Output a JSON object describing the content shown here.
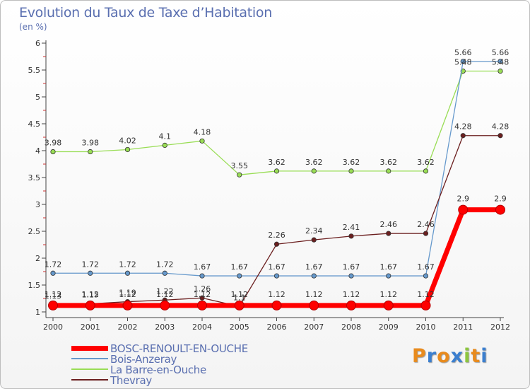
{
  "title": "Evolution du Taux de Taxe d’Habitation",
  "subtitle": "(en %)",
  "logo": {
    "text": [
      "P",
      "r",
      "o",
      "x",
      "i",
      "t",
      "i"
    ],
    "colors": [
      "#e88b1e",
      "#3b7fcf",
      "#e88b1e",
      "#3b7fcf",
      "#8dc63f",
      "#e88b1e",
      "#3b7fcf"
    ]
  },
  "chart_data": {
    "type": "line",
    "x": [
      "2000",
      "2001",
      "2002",
      "2003",
      "2004",
      "2005",
      "2006",
      "2007",
      "2008",
      "2009",
      "2010",
      "2011",
      "2012"
    ],
    "ylim": [
      1,
      6
    ],
    "yticks": [
      "1",
      "1.5",
      "2",
      "2.5",
      "3",
      "3.5",
      "4",
      "4.5",
      "5",
      "5.5",
      "6"
    ],
    "series": [
      {
        "name": "BOSC-RENOULT-EN-OUCHE",
        "color": "#ff0000",
        "values": [
          1.12,
          1.12,
          1.12,
          1.12,
          1.12,
          1.12,
          1.12,
          1.12,
          1.12,
          1.12,
          1.12,
          2.9,
          2.9
        ],
        "labels": [
          "1.12",
          "1.12",
          "1.12",
          "1.12",
          "1.12",
          "1.12",
          "1.12",
          "1.12",
          "1.12",
          "1.12",
          "1.12",
          "2.9",
          "2.9"
        ]
      },
      {
        "name": "Bois-Anzeray",
        "color": "#6699cc",
        "values": [
          1.72,
          1.72,
          1.72,
          1.72,
          1.67,
          1.67,
          1.67,
          1.67,
          1.67,
          1.67,
          1.67,
          5.66,
          5.66
        ],
        "labels": [
          "1.72",
          "1.72",
          "1.72",
          "1.72",
          "1.67",
          "1.67",
          "1.67",
          "1.67",
          "1.67",
          "1.67",
          "1.67",
          "5.66",
          "5.66"
        ]
      },
      {
        "name": "La Barre-en-Ouche",
        "color": "#99dd55",
        "values": [
          3.98,
          3.98,
          4.02,
          4.1,
          4.18,
          3.55,
          3.62,
          3.62,
          3.62,
          3.62,
          3.62,
          5.48,
          5.48
        ],
        "labels": [
          "3.98",
          "3.98",
          "4.02",
          "4.1",
          "4.18",
          "3.55",
          "3.62",
          "3.62",
          "3.62",
          "3.62",
          "3.62",
          "5.48",
          "5.48"
        ]
      },
      {
        "name": "Thevray",
        "color": "#6b1f1f",
        "values": [
          1.13,
          1.15,
          1.19,
          1.22,
          1.26,
          1.1,
          2.26,
          2.34,
          2.41,
          2.46,
          2.46,
          4.28,
          4.28
        ],
        "labels": [
          "1.13",
          "1.15",
          "1.19",
          "1.22",
          "1.26",
          "1.1",
          "2.26",
          "2.34",
          "2.41",
          "2.46",
          "2.46",
          "4.28",
          "4.28"
        ]
      }
    ],
    "grid": false,
    "legend": "bottom-left"
  }
}
